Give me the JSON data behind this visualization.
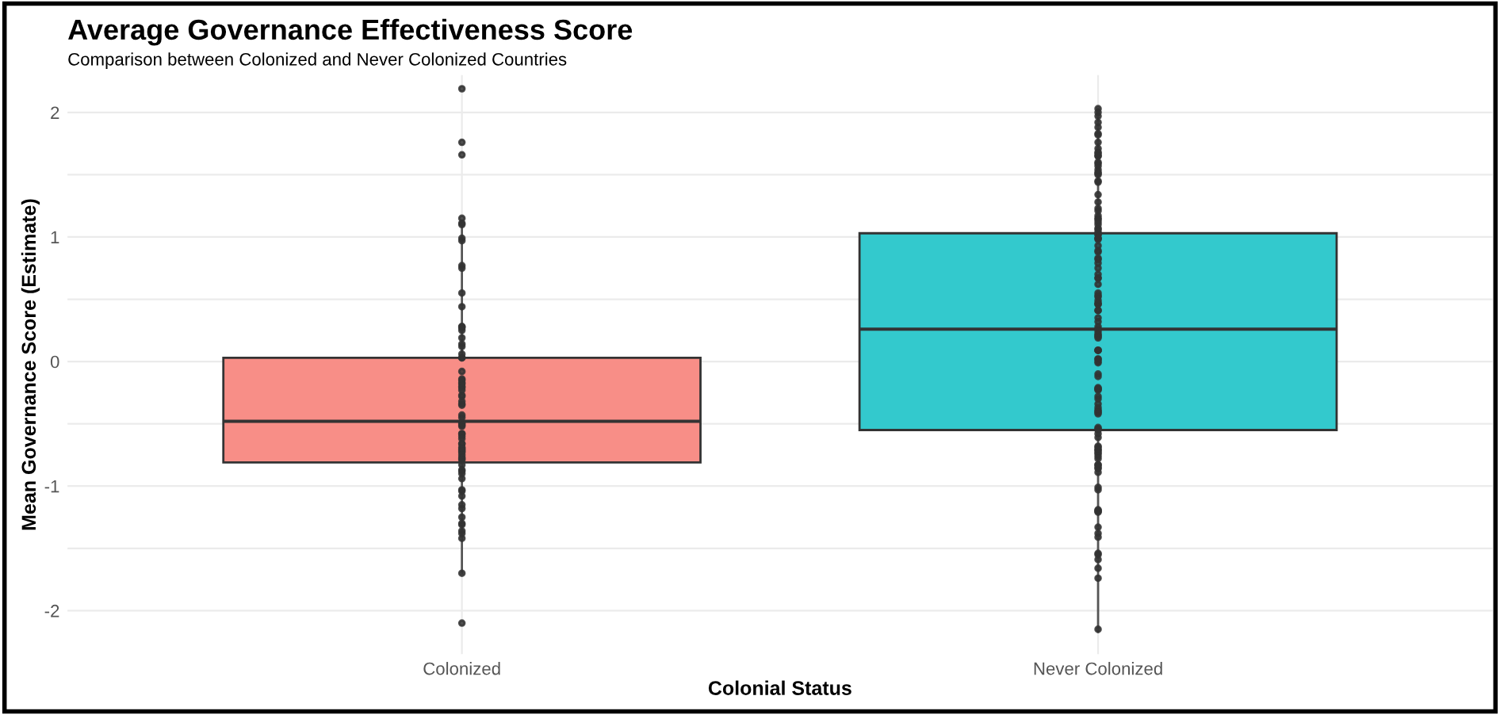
{
  "chart_data": {
    "type": "box",
    "title": "Average Governance Effectiveness Score",
    "subtitle": "Comparison between Colonized and Never Colonized Countries",
    "xlabel": "Colonial Status",
    "ylabel": "Mean Governance Score (Estimate)",
    "categories": [
      "Colonized",
      "Never Colonized"
    ],
    "colors": [
      "#f88e87",
      "#33c9cd"
    ],
    "boxes": [
      {
        "low": -1.7,
        "q1": -0.81,
        "median": -0.48,
        "q3": 0.03,
        "high": 1.13
      },
      {
        "low": -2.17,
        "q1": -0.55,
        "median": 0.26,
        "q3": 1.03,
        "high": 2.03
      }
    ],
    "ylim": [
      -2.35,
      2.3
    ],
    "yticks": [
      -2,
      {
        "value": -1.5,
        "label": null
      },
      -1,
      {
        "value": -0.5,
        "label": null
      },
      0,
      {
        "value": 0.5,
        "label": null
      },
      1,
      {
        "value": 1.5,
        "label": null
      },
      2
    ],
    "grid": true,
    "series": [
      {
        "type": "scatter",
        "color": "#333333",
        "x": [
          "Colonized",
          "Colonized",
          "Colonized",
          "Colonized",
          "Colonized",
          "Colonized",
          "Colonized",
          "Colonized",
          "Colonized",
          "Colonized",
          "Colonized",
          "Colonized",
          "Colonized",
          "Colonized",
          "Colonized",
          "Colonized",
          "Colonized",
          "Colonized",
          "Colonized",
          "Colonized",
          "Colonized",
          "Colonized",
          "Colonized",
          "Colonized",
          "Colonized",
          "Colonized",
          "Colonized",
          "Colonized",
          "Colonized",
          "Colonized",
          "Colonized",
          "Colonized",
          "Colonized",
          "Colonized",
          "Colonized",
          "Colonized",
          "Colonized",
          "Colonized",
          "Colonized",
          "Colonized",
          "Colonized",
          "Colonized",
          "Colonized",
          "Colonized",
          "Colonized",
          "Colonized",
          "Colonized",
          "Colonized",
          "Colonized",
          "Colonized",
          "Colonized",
          "Colonized",
          "Colonized",
          "Colonized",
          "Colonized",
          "Colonized",
          "Colonized",
          "Colonized",
          "Colonized",
          "Colonized",
          "Colonized",
          "Colonized",
          "Colonized",
          "Colonized",
          "Colonized",
          "Colonized",
          "Colonized",
          "Colonized",
          "Colonized",
          "Colonized",
          "Colonized",
          "Colonized",
          "Colonized",
          "Colonized"
        ],
        "values": [
          2.19,
          1.76,
          1.66,
          1.11,
          1.15,
          1.1,
          0.99,
          0.97,
          0.77,
          0.75,
          0.55,
          0.44,
          0.27,
          0.28,
          0.28,
          0.25,
          0.19,
          0.12,
          0.14,
          0.06,
          0.03,
          0.03,
          -0.15,
          -0.18,
          -0.23,
          -0.2,
          -0.14,
          -0.17,
          -0.27,
          -0.28,
          -0.08,
          -0.21,
          -0.32,
          -0.35,
          -0.34,
          -0.43,
          -0.45,
          -0.51,
          -0.52,
          -0.5,
          -0.49,
          -0.58,
          -0.58,
          -0.6,
          -0.62,
          -0.66,
          -0.66,
          -0.69,
          -0.7,
          -0.71,
          -0.72,
          -0.73,
          -0.75,
          -0.77,
          -0.78,
          -0.79,
          -0.83,
          -0.87,
          -0.88,
          -0.9,
          -0.94,
          -1.03,
          -1.04,
          -1.08,
          -1.15,
          -1.18,
          -1.25,
          -1.3,
          -1.31,
          -1.36,
          -1.38,
          -1.42,
          -1.7,
          -2.1
        ]
      },
      {
        "type": "scatter",
        "color": "#333333",
        "x": [
          "Never Colonized",
          "Never Colonized",
          "Never Colonized",
          "Never Colonized",
          "Never Colonized",
          "Never Colonized",
          "Never Colonized",
          "Never Colonized",
          "Never Colonized",
          "Never Colonized",
          "Never Colonized",
          "Never Colonized",
          "Never Colonized",
          "Never Colonized",
          "Never Colonized",
          "Never Colonized",
          "Never Colonized",
          "Never Colonized",
          "Never Colonized",
          "Never Colonized",
          "Never Colonized",
          "Never Colonized",
          "Never Colonized",
          "Never Colonized",
          "Never Colonized",
          "Never Colonized",
          "Never Colonized",
          "Never Colonized",
          "Never Colonized",
          "Never Colonized",
          "Never Colonized",
          "Never Colonized",
          "Never Colonized",
          "Never Colonized",
          "Never Colonized",
          "Never Colonized",
          "Never Colonized",
          "Never Colonized",
          "Never Colonized",
          "Never Colonized",
          "Never Colonized",
          "Never Colonized",
          "Never Colonized",
          "Never Colonized",
          "Never Colonized",
          "Never Colonized",
          "Never Colonized",
          "Never Colonized",
          "Never Colonized",
          "Never Colonized",
          "Never Colonized",
          "Never Colonized",
          "Never Colonized",
          "Never Colonized",
          "Never Colonized",
          "Never Colonized",
          "Never Colonized",
          "Never Colonized",
          "Never Colonized",
          "Never Colonized",
          "Never Colonized",
          "Never Colonized",
          "Never Colonized",
          "Never Colonized",
          "Never Colonized",
          "Never Colonized",
          "Never Colonized",
          "Never Colonized",
          "Never Colonized",
          "Never Colonized",
          "Never Colonized",
          "Never Colonized",
          "Never Colonized",
          "Never Colonized",
          "Never Colonized",
          "Never Colonized",
          "Never Colonized",
          "Never Colonized",
          "Never Colonized",
          "Never Colonized",
          "Never Colonized",
          "Never Colonized",
          "Never Colonized",
          "Never Colonized",
          "Never Colonized",
          "Never Colonized",
          "Never Colonized",
          "Never Colonized",
          "Never Colonized",
          "Never Colonized",
          "Never Colonized",
          "Never Colonized",
          "Never Colonized",
          "Never Colonized",
          "Never Colonized",
          "Never Colonized",
          "Never Colonized",
          "Never Colonized",
          "Never Colonized",
          "Never Colonized",
          "Never Colonized",
          "Never Colonized",
          "Never Colonized",
          "Never Colonized",
          "Never Colonized",
          "Never Colonized",
          "Never Colonized",
          "Never Colonized",
          "Never Colonized",
          "Never Colonized",
          "Never Colonized",
          "Never Colonized",
          "Never Colonized",
          "Never Colonized",
          "Never Colonized",
          "Never Colonized",
          "Never Colonized",
          "Never Colonized",
          "Never Colonized",
          "Never Colonized",
          "Never Colonized",
          "Never Colonized"
        ],
        "values": [
          2.03,
          2.0,
          1.97,
          1.92,
          1.88,
          1.83,
          1.82,
          1.76,
          1.71,
          1.68,
          1.67,
          1.65,
          1.65,
          1.6,
          1.59,
          1.57,
          1.54,
          1.52,
          1.51,
          1.5,
          1.45,
          1.44,
          1.34,
          1.28,
          1.23,
          1.21,
          1.17,
          1.15,
          1.14,
          1.12,
          1.1,
          1.07,
          1.06,
          1.04,
          1.02,
          1.02,
          0.99,
          0.99,
          0.98,
          0.93,
          0.89,
          0.88,
          0.83,
          0.82,
          0.79,
          0.75,
          0.7,
          0.67,
          0.67,
          0.62,
          0.55,
          0.53,
          0.52,
          0.49,
          0.47,
          0.46,
          0.46,
          0.41,
          0.41,
          0.35,
          0.32,
          0.28,
          0.26,
          0.24,
          0.22,
          0.21,
          0.2,
          0.19,
          0.09,
          0.09,
          0.09,
          0.02,
          0.02,
          0.0,
          -0.01,
          -0.1,
          -0.12,
          -0.21,
          -0.22,
          -0.22,
          -0.23,
          -0.28,
          -0.3,
          -0.34,
          -0.37,
          -0.39,
          -0.4,
          -0.41,
          -0.42,
          -0.53,
          -0.54,
          -0.55,
          -0.58,
          -0.61,
          -0.68,
          -0.69,
          -0.71,
          -0.71,
          -0.73,
          -0.74,
          -0.76,
          -0.78,
          -0.83,
          -0.83,
          -0.85,
          -0.86,
          -0.89,
          -1.01,
          -1.03,
          -1.19,
          -1.2,
          -1.2,
          -1.21,
          -1.33,
          -1.38,
          -1.41,
          -1.54,
          -1.55,
          -1.59,
          -1.66,
          -1.74,
          -2.15
        ]
      }
    ]
  }
}
